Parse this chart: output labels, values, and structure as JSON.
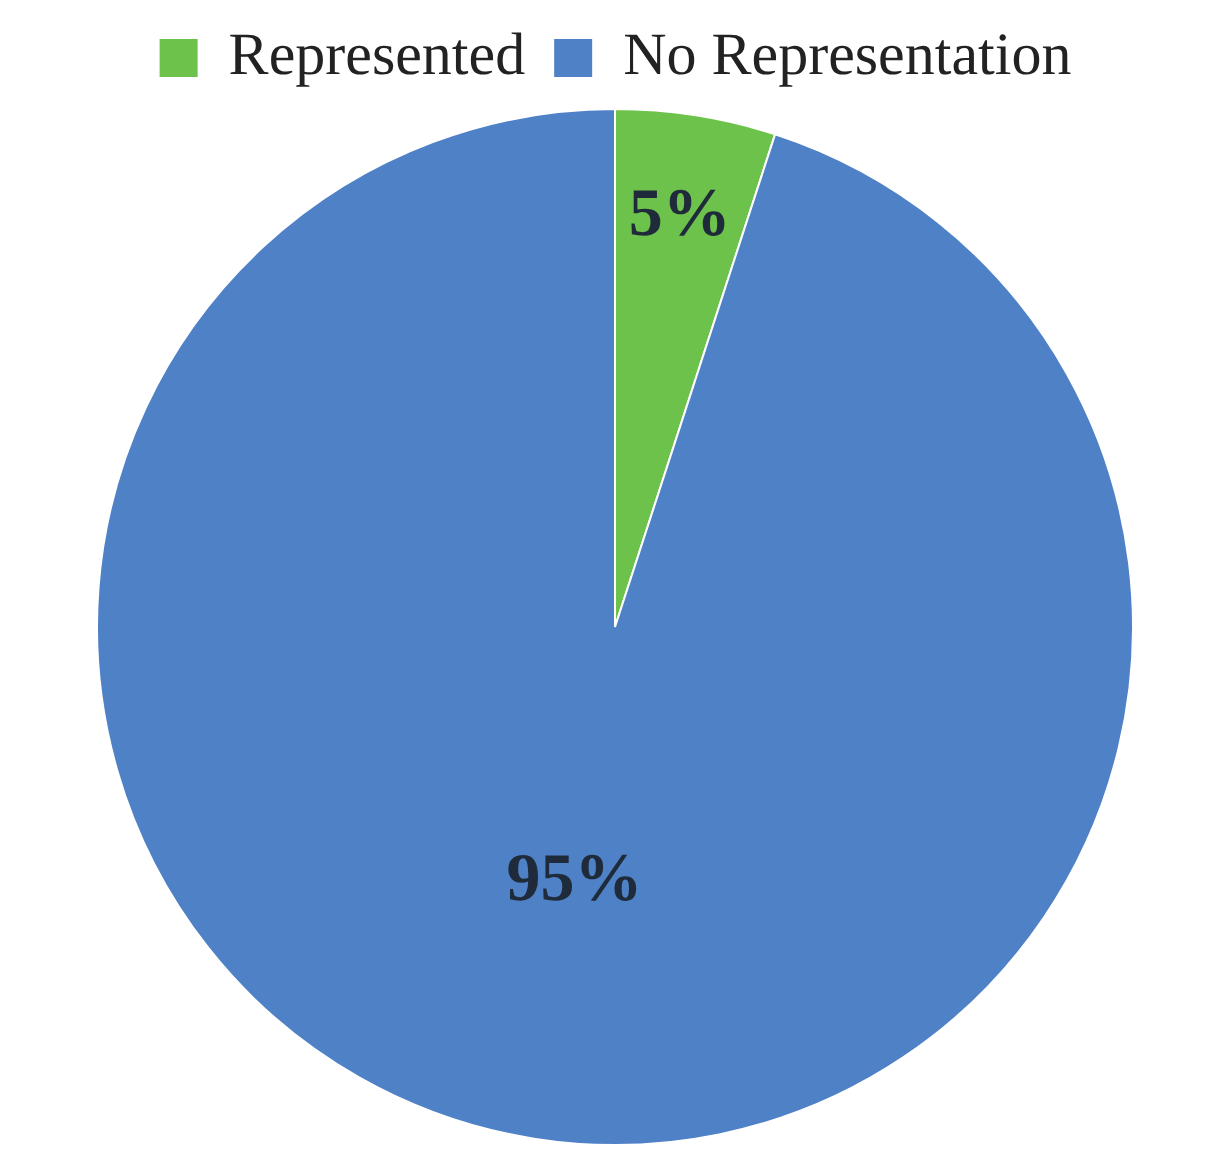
{
  "chart_data": {
    "type": "pie",
    "categories": [
      "Represented",
      "No Representation"
    ],
    "values": [
      5,
      95
    ],
    "colors": [
      "#6cc24a",
      "#4f81c7"
    ],
    "value_labels": [
      "5%",
      "95%"
    ],
    "legend": "top"
  }
}
